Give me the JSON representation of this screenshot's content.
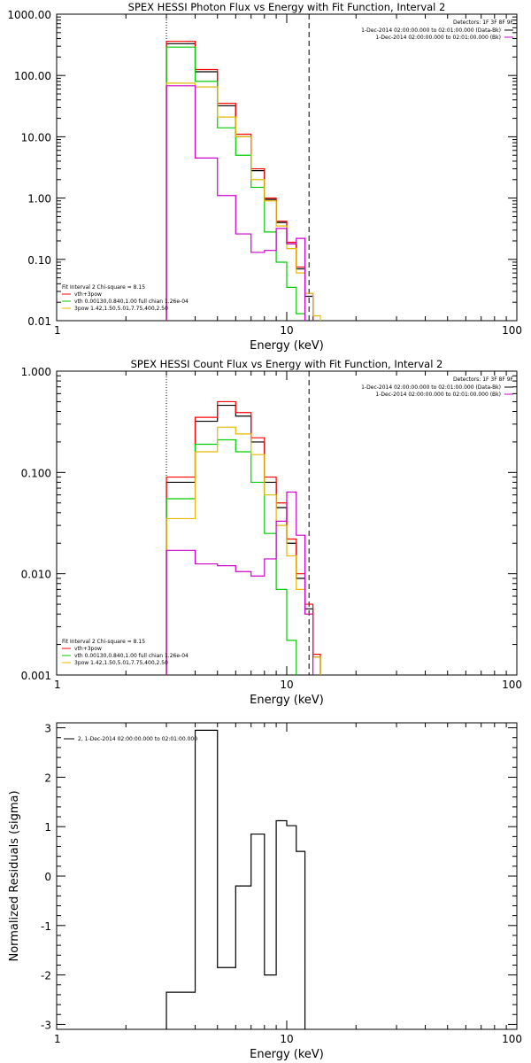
{
  "chart_data": [
    {
      "type": "line",
      "title": "SPEX HESSI Photon Flux vs Energy with Fit Function, Interval 2",
      "xlabel": "Energy (keV)",
      "ylabel": "",
      "xscale": "log",
      "yscale": "log",
      "xlim": [
        1,
        100
      ],
      "ylim": [
        0.01,
        1000
      ],
      "x_ticks": [
        1,
        10,
        100
      ],
      "x_tick_labels": [
        "1",
        "10",
        "100"
      ],
      "y_ticks": [
        0.01,
        0.1,
        1,
        10,
        100,
        1000
      ],
      "y_tick_labels": [
        "0.01",
        "0.10",
        "1.00",
        "10.00",
        "100.00",
        "1000.00"
      ],
      "vlines": [
        {
          "x": 3.0,
          "style": "dotted"
        },
        {
          "x": 12.5,
          "style": "dashed"
        }
      ],
      "legend_topright": {
        "header": "Detectors: 1F 3F 8F 9F",
        "items": [
          {
            "label": "1-Dec-2014 02:00:00.000 to 02:01:00.000 (Data-Bk)",
            "color": "#000000"
          },
          {
            "label": "1-Dec-2014 02:00:00.000 to 02:01:00.000 (Bk)",
            "color": "#cc00cc"
          }
        ]
      },
      "legend_bottomleft": {
        "header": "Fit Interval 2   Chi-square = 8.15",
        "items": [
          {
            "label": "vth+3pow",
            "color": "#ff0000"
          },
          {
            "label": "vth 0.00130,0.840,1.00  full chian 1.26e-04",
            "color": "#00cc00"
          },
          {
            "label": "3pow 1.42,1.50,5.01,7.75,400,2.50",
            "color": "#e6b800"
          }
        ]
      },
      "bin_edges": [
        3.0,
        4.0,
        5.0,
        6.0,
        7.0,
        8.0,
        9.0,
        10.0,
        11.0,
        12.0,
        13.0,
        14.0,
        15.0
      ],
      "series": [
        {
          "color": "#000000",
          "values": [
            330,
            115,
            32,
            10,
            2.8,
            0.95,
            0.4,
            0.18,
            0.07,
            0.025,
            null,
            null
          ]
        },
        {
          "color": "#ff0000",
          "values": [
            360,
            125,
            35,
            11,
            3.0,
            1.0,
            0.42,
            0.19,
            0.075,
            0.028,
            null,
            null
          ]
        },
        {
          "color": "#00cc00",
          "values": [
            290,
            80,
            14,
            5,
            1.5,
            0.28,
            0.09,
            0.035,
            0.013,
            null,
            null,
            null
          ]
        },
        {
          "color": "#e6b800",
          "values": [
            75,
            65,
            21,
            10,
            2.0,
            0.9,
            0.35,
            0.15,
            0.06,
            0.028,
            0.012,
            null
          ]
        },
        {
          "color": "#cc00cc",
          "values": [
            68,
            4.5,
            1.1,
            0.26,
            0.13,
            0.14,
            0.32,
            0.18,
            0.22,
            null,
            null,
            null
          ]
        }
      ]
    },
    {
      "type": "line",
      "title": "SPEX HESSI Count Flux vs Energy with Fit Function, Interval 2",
      "xlabel": "Energy (keV)",
      "ylabel": "",
      "xscale": "log",
      "yscale": "log",
      "xlim": [
        1,
        100
      ],
      "ylim": [
        0.001,
        1
      ],
      "x_ticks": [
        1,
        10,
        100
      ],
      "x_tick_labels": [
        "1",
        "10",
        "100"
      ],
      "y_ticks": [
        0.001,
        0.01,
        0.1,
        1
      ],
      "y_tick_labels": [
        "0.001",
        "0.010",
        "0.100",
        "1.000"
      ],
      "vlines": [
        {
          "x": 3.0,
          "style": "dotted"
        },
        {
          "x": 12.5,
          "style": "dashed"
        }
      ],
      "legend_topright": {
        "header": "Detectors: 1F 3F 8F 9F",
        "items": [
          {
            "label": "1-Dec-2014 02:00:00.000 to 02:01:00.000 (Data-Bk)",
            "color": "#000000"
          },
          {
            "label": "1-Dec-2014 02:00:00.000 to 02:01:00.000 (Bk)",
            "color": "#cc00cc"
          }
        ]
      },
      "legend_bottomleft": {
        "header": "Fit Interval 2   Chi-square = 8.15",
        "items": [
          {
            "label": "vth+3pow",
            "color": "#ff0000"
          },
          {
            "label": "vth 0.00130,0.840,1.00  full chian 1.26e-04",
            "color": "#00cc00"
          },
          {
            "label": "3pow 1.42,1.50,5.01,7.75,400,2.50",
            "color": "#e6b800"
          }
        ]
      },
      "bin_edges": [
        3.0,
        4.0,
        5.0,
        6.0,
        7.0,
        8.0,
        9.0,
        10.0,
        11.0,
        12.0,
        13.0,
        14.0,
        15.0
      ],
      "series": [
        {
          "color": "#000000",
          "values": [
            0.08,
            0.32,
            0.46,
            0.36,
            0.2,
            0.08,
            0.045,
            0.02,
            0.009,
            0.0045,
            0.0015,
            null
          ]
        },
        {
          "color": "#ff0000",
          "values": [
            0.09,
            0.35,
            0.5,
            0.39,
            0.22,
            0.09,
            0.05,
            0.022,
            0.01,
            0.005,
            0.0016,
            null
          ]
        },
        {
          "color": "#00cc00",
          "values": [
            0.055,
            0.19,
            0.21,
            0.16,
            0.08,
            0.025,
            0.007,
            0.0022,
            null,
            null,
            null,
            null
          ]
        },
        {
          "color": "#e6b800",
          "values": [
            0.035,
            0.16,
            0.28,
            0.24,
            0.15,
            0.06,
            0.03,
            0.015,
            0.007,
            0.004,
            0.0015,
            null
          ]
        },
        {
          "color": "#cc00cc",
          "values": [
            0.017,
            0.0125,
            0.012,
            0.0105,
            0.0095,
            0.014,
            0.033,
            0.064,
            0.024,
            0.004,
            null,
            null
          ]
        }
      ]
    },
    {
      "type": "line",
      "title": "",
      "xlabel": "Energy (keV)",
      "ylabel": "Normalized Residuals (sigma)",
      "xscale": "log",
      "yscale": "linear",
      "xlim": [
        1,
        100
      ],
      "ylim": [
        -3.1,
        3.1
      ],
      "x_ticks": [
        1,
        10,
        100
      ],
      "x_tick_labels": [
        "1",
        "10",
        "100"
      ],
      "y_ticks": [
        -3,
        -2,
        -1,
        0,
        1,
        2,
        3
      ],
      "y_tick_labels": [
        "-3",
        "-2",
        "-1",
        "0",
        "1",
        "2",
        "3"
      ],
      "legend_topleft": {
        "items": [
          {
            "label": "2, 1-Dec-2014 02:00:00.000 to 02:01:00.000",
            "color": "#000000"
          }
        ]
      },
      "bin_edges": [
        3.0,
        4.0,
        5.0,
        6.0,
        7.0,
        8.0,
        9.0,
        10.0,
        11.0,
        12.0
      ],
      "series": [
        {
          "color": "#000000",
          "values": [
            -2.35,
            2.95,
            -1.85,
            -0.2,
            0.85,
            -2.0,
            1.12,
            1.02,
            0.5
          ]
        }
      ]
    }
  ]
}
